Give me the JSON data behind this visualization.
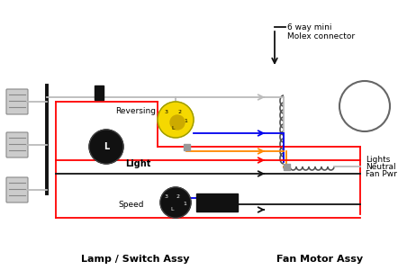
{
  "bg_color": "#ffffff",
  "molex_label": "6 way mini\nMolex connector",
  "label_lamp": "Lamp / Switch Assy",
  "label_fan": "Fan Motor Assy",
  "label_reversing": "Reversing",
  "label_light": "Light",
  "label_speed": "Speed",
  "label_neutral": "Neutral",
  "label_lights": "Lights",
  "label_fanpwr": "Fan Pwr",
  "wire_gray": "#bbbbbb",
  "wire_blue": "#0000ee",
  "wire_orange": "#ff8800",
  "wire_red": "#ff0000",
  "wire_black": "#111111",
  "plug_face": "#cccccc",
  "plug_edge": "#888888",
  "yellow": "#f5d800",
  "coil_color": "#555555"
}
